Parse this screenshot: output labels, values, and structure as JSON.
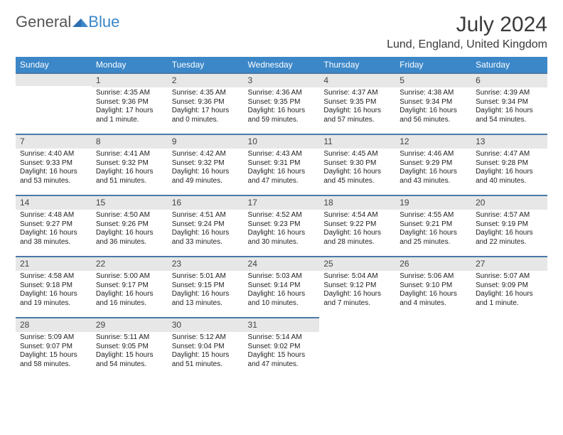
{
  "brand": {
    "part1": "General",
    "part2": "Blue"
  },
  "title": "July 2024",
  "location": "Lund, England, United Kingdom",
  "colors": {
    "header_bg": "#3b87c8",
    "band_bg": "#e7e7e7",
    "band_border": "#4a7aa8",
    "text": "#333333"
  },
  "weekdays": [
    "Sunday",
    "Monday",
    "Tuesday",
    "Wednesday",
    "Thursday",
    "Friday",
    "Saturday"
  ],
  "weeks": [
    [
      null,
      {
        "n": "1",
        "sr": "Sunrise: 4:35 AM",
        "ss": "Sunset: 9:36 PM",
        "dl": "Daylight: 17 hours and 1 minute."
      },
      {
        "n": "2",
        "sr": "Sunrise: 4:35 AM",
        "ss": "Sunset: 9:36 PM",
        "dl": "Daylight: 17 hours and 0 minutes."
      },
      {
        "n": "3",
        "sr": "Sunrise: 4:36 AM",
        "ss": "Sunset: 9:35 PM",
        "dl": "Daylight: 16 hours and 59 minutes."
      },
      {
        "n": "4",
        "sr": "Sunrise: 4:37 AM",
        "ss": "Sunset: 9:35 PM",
        "dl": "Daylight: 16 hours and 57 minutes."
      },
      {
        "n": "5",
        "sr": "Sunrise: 4:38 AM",
        "ss": "Sunset: 9:34 PM",
        "dl": "Daylight: 16 hours and 56 minutes."
      },
      {
        "n": "6",
        "sr": "Sunrise: 4:39 AM",
        "ss": "Sunset: 9:34 PM",
        "dl": "Daylight: 16 hours and 54 minutes."
      }
    ],
    [
      {
        "n": "7",
        "sr": "Sunrise: 4:40 AM",
        "ss": "Sunset: 9:33 PM",
        "dl": "Daylight: 16 hours and 53 minutes."
      },
      {
        "n": "8",
        "sr": "Sunrise: 4:41 AM",
        "ss": "Sunset: 9:32 PM",
        "dl": "Daylight: 16 hours and 51 minutes."
      },
      {
        "n": "9",
        "sr": "Sunrise: 4:42 AM",
        "ss": "Sunset: 9:32 PM",
        "dl": "Daylight: 16 hours and 49 minutes."
      },
      {
        "n": "10",
        "sr": "Sunrise: 4:43 AM",
        "ss": "Sunset: 9:31 PM",
        "dl": "Daylight: 16 hours and 47 minutes."
      },
      {
        "n": "11",
        "sr": "Sunrise: 4:45 AM",
        "ss": "Sunset: 9:30 PM",
        "dl": "Daylight: 16 hours and 45 minutes."
      },
      {
        "n": "12",
        "sr": "Sunrise: 4:46 AM",
        "ss": "Sunset: 9:29 PM",
        "dl": "Daylight: 16 hours and 43 minutes."
      },
      {
        "n": "13",
        "sr": "Sunrise: 4:47 AM",
        "ss": "Sunset: 9:28 PM",
        "dl": "Daylight: 16 hours and 40 minutes."
      }
    ],
    [
      {
        "n": "14",
        "sr": "Sunrise: 4:48 AM",
        "ss": "Sunset: 9:27 PM",
        "dl": "Daylight: 16 hours and 38 minutes."
      },
      {
        "n": "15",
        "sr": "Sunrise: 4:50 AM",
        "ss": "Sunset: 9:26 PM",
        "dl": "Daylight: 16 hours and 36 minutes."
      },
      {
        "n": "16",
        "sr": "Sunrise: 4:51 AM",
        "ss": "Sunset: 9:24 PM",
        "dl": "Daylight: 16 hours and 33 minutes."
      },
      {
        "n": "17",
        "sr": "Sunrise: 4:52 AM",
        "ss": "Sunset: 9:23 PM",
        "dl": "Daylight: 16 hours and 30 minutes."
      },
      {
        "n": "18",
        "sr": "Sunrise: 4:54 AM",
        "ss": "Sunset: 9:22 PM",
        "dl": "Daylight: 16 hours and 28 minutes."
      },
      {
        "n": "19",
        "sr": "Sunrise: 4:55 AM",
        "ss": "Sunset: 9:21 PM",
        "dl": "Daylight: 16 hours and 25 minutes."
      },
      {
        "n": "20",
        "sr": "Sunrise: 4:57 AM",
        "ss": "Sunset: 9:19 PM",
        "dl": "Daylight: 16 hours and 22 minutes."
      }
    ],
    [
      {
        "n": "21",
        "sr": "Sunrise: 4:58 AM",
        "ss": "Sunset: 9:18 PM",
        "dl": "Daylight: 16 hours and 19 minutes."
      },
      {
        "n": "22",
        "sr": "Sunrise: 5:00 AM",
        "ss": "Sunset: 9:17 PM",
        "dl": "Daylight: 16 hours and 16 minutes."
      },
      {
        "n": "23",
        "sr": "Sunrise: 5:01 AM",
        "ss": "Sunset: 9:15 PM",
        "dl": "Daylight: 16 hours and 13 minutes."
      },
      {
        "n": "24",
        "sr": "Sunrise: 5:03 AM",
        "ss": "Sunset: 9:14 PM",
        "dl": "Daylight: 16 hours and 10 minutes."
      },
      {
        "n": "25",
        "sr": "Sunrise: 5:04 AM",
        "ss": "Sunset: 9:12 PM",
        "dl": "Daylight: 16 hours and 7 minutes."
      },
      {
        "n": "26",
        "sr": "Sunrise: 5:06 AM",
        "ss": "Sunset: 9:10 PM",
        "dl": "Daylight: 16 hours and 4 minutes."
      },
      {
        "n": "27",
        "sr": "Sunrise: 5:07 AM",
        "ss": "Sunset: 9:09 PM",
        "dl": "Daylight: 16 hours and 1 minute."
      }
    ],
    [
      {
        "n": "28",
        "sr": "Sunrise: 5:09 AM",
        "ss": "Sunset: 9:07 PM",
        "dl": "Daylight: 15 hours and 58 minutes."
      },
      {
        "n": "29",
        "sr": "Sunrise: 5:11 AM",
        "ss": "Sunset: 9:05 PM",
        "dl": "Daylight: 15 hours and 54 minutes."
      },
      {
        "n": "30",
        "sr": "Sunrise: 5:12 AM",
        "ss": "Sunset: 9:04 PM",
        "dl": "Daylight: 15 hours and 51 minutes."
      },
      {
        "n": "31",
        "sr": "Sunrise: 5:14 AM",
        "ss": "Sunset: 9:02 PM",
        "dl": "Daylight: 15 hours and 47 minutes."
      },
      null,
      null,
      null
    ]
  ]
}
